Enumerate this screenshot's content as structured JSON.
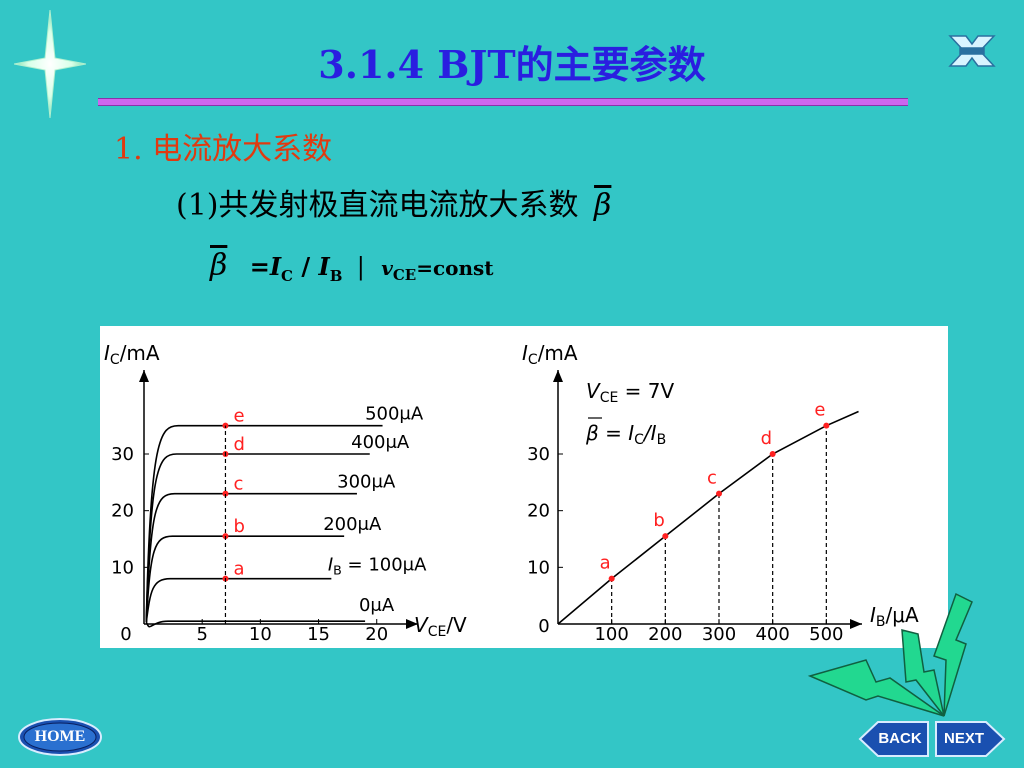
{
  "title": "3.1.4  BJT的主要参数",
  "section": "1. 电流放大系数",
  "subsection": {
    "text": "(1)共发射极直流电流放大系数",
    "symbol": "β"
  },
  "formula": {
    "beta": "β",
    "eq": "=",
    "ic": "I",
    "ic_sub": "C",
    "slash": " / ",
    "ib": "I",
    "ib_sub": "B",
    "bar": "|",
    "v": "v",
    "v_sub": "CE",
    "cond": "=const"
  },
  "nav": {
    "home": "HOME",
    "back": "BACK",
    "next": "NEXT"
  },
  "colors": {
    "background": "#33c6c6",
    "title": "#2a1ee0",
    "section": "#e03a10",
    "point": "#ff2020"
  },
  "chart_data": [
    {
      "type": "line",
      "name": "output-characteristics",
      "ylabel_main": "I",
      "ylabel_sub": "C",
      "ylabel_unit": "/mA",
      "xlabel_main": "V",
      "xlabel_sub": "CE",
      "xlabel_unit": "/V",
      "xlim": [
        0,
        22
      ],
      "ylim": [
        0,
        42
      ],
      "x_ticks": [
        "0",
        "5",
        "10",
        "15",
        "20"
      ],
      "x_tick_values": [
        0,
        5,
        10,
        15,
        20
      ],
      "y_ticks": [
        "10",
        "20",
        "30"
      ],
      "y_tick_values": [
        10,
        20,
        30
      ],
      "operating_vce": 7,
      "curves": [
        {
          "ib_label": "0μA",
          "ic": 0.5,
          "label": "0μA",
          "point": ""
        },
        {
          "ib_label": "100μA",
          "ic": 8,
          "label": "I_B = 100μA",
          "point": "a"
        },
        {
          "ib_label": "200μA",
          "ic": 15.5,
          "label": "200μA",
          "point": "b"
        },
        {
          "ib_label": "300μA",
          "ic": 23,
          "label": "300μA",
          "point": "c"
        },
        {
          "ib_label": "400μA",
          "ic": 30,
          "label": "400μA",
          "point": "d"
        },
        {
          "ib_label": "500μA",
          "ic": 35,
          "label": "500μA",
          "point": "e"
        }
      ],
      "ib_label_prefix": "I",
      "ib_label_sub": "B",
      "ib_label_eq": " = 100μA"
    },
    {
      "type": "line",
      "name": "transfer-characteristic",
      "ylabel_main": "I",
      "ylabel_sub": "C",
      "ylabel_unit": "/mA",
      "xlabel_main": "I",
      "xlabel_sub": "B",
      "xlabel_unit": "/μA",
      "xlim": [
        0,
        600
      ],
      "ylim": [
        0,
        42
      ],
      "x_ticks": [
        "100",
        "200",
        "300",
        "400",
        "500"
      ],
      "x_tick_values": [
        100,
        200,
        300,
        400,
        500
      ],
      "y_ticks": [
        "10",
        "20",
        "30"
      ],
      "y_tick_values": [
        10,
        20,
        30
      ],
      "origin_label": "0",
      "annotation_vce": "V",
      "annotation_vce_sub": "CE",
      "annotation_vce_val": " = 7V",
      "annotation_beta": "β = I",
      "annotation_beta_sub1": "C",
      "annotation_beta_mid": "/I",
      "annotation_beta_sub2": "B",
      "points": [
        {
          "label": "a",
          "x": 100,
          "y": 8
        },
        {
          "label": "b",
          "x": 200,
          "y": 15.5
        },
        {
          "label": "c",
          "x": 300,
          "y": 23
        },
        {
          "label": "d",
          "x": 400,
          "y": 30
        },
        {
          "label": "e",
          "x": 500,
          "y": 35
        }
      ],
      "curve": [
        [
          0,
          0
        ],
        [
          100,
          8
        ],
        [
          200,
          15.5
        ],
        [
          300,
          23
        ],
        [
          400,
          30
        ],
        [
          500,
          35
        ],
        [
          560,
          37.5
        ]
      ]
    }
  ]
}
